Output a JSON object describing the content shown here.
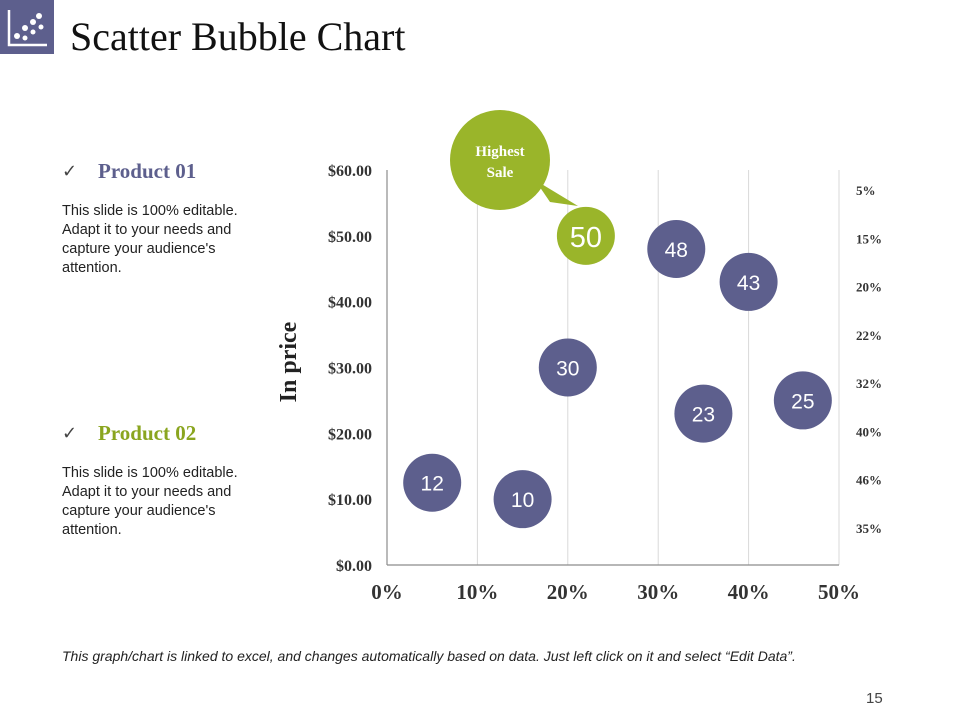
{
  "page": {
    "title": "Scatter Bubble Chart",
    "page_number": "15",
    "footnote": "This graph/chart is linked to excel, and changes automatically based on data. Just left click on it and select “Edit Data”."
  },
  "products": [
    {
      "name": "Product 01",
      "color": "#5d5f8d",
      "description": "This slide is 100% editable. Adapt it to your needs and capture your audience's attention."
    },
    {
      "name": "Product 02",
      "color": "#8aa51f",
      "description": "This slide is 100% editable. Adapt it to your needs and capture your audience's attention."
    }
  ],
  "callout": {
    "line1": "Highest",
    "line2": "Sale",
    "color": "#9ab52a"
  },
  "colors": {
    "bubble": "#5d5f8d",
    "highlight": "#9ab52a",
    "grid": "#d9d9d9"
  },
  "chart_data": {
    "type": "scatter",
    "ylabel": "In price",
    "xlim": [
      0,
      50
    ],
    "ylim": [
      0,
      60
    ],
    "x_ticks": [
      "0%",
      "10%",
      "20%",
      "30%",
      "40%",
      "50%"
    ],
    "y_ticks": [
      "$0.00",
      "$10.00",
      "$20.00",
      "$30.00",
      "$40.00",
      "$50.00",
      "$60.00"
    ],
    "right_labels": [
      "5%",
      "15%",
      "20%",
      "22%",
      "32%",
      "40%",
      "46%",
      "35%"
    ],
    "points": [
      {
        "x": 5,
        "y": 12.5,
        "label": "12"
      },
      {
        "x": 15,
        "y": 10,
        "label": "10"
      },
      {
        "x": 20,
        "y": 30,
        "label": "30"
      },
      {
        "x": 22,
        "y": 50,
        "label": "50",
        "highlight": true
      },
      {
        "x": 32,
        "y": 48,
        "label": "48"
      },
      {
        "x": 35,
        "y": 23,
        "label": "23"
      },
      {
        "x": 40,
        "y": 43,
        "label": "43"
      },
      {
        "x": 46,
        "y": 25,
        "label": "25"
      }
    ]
  }
}
